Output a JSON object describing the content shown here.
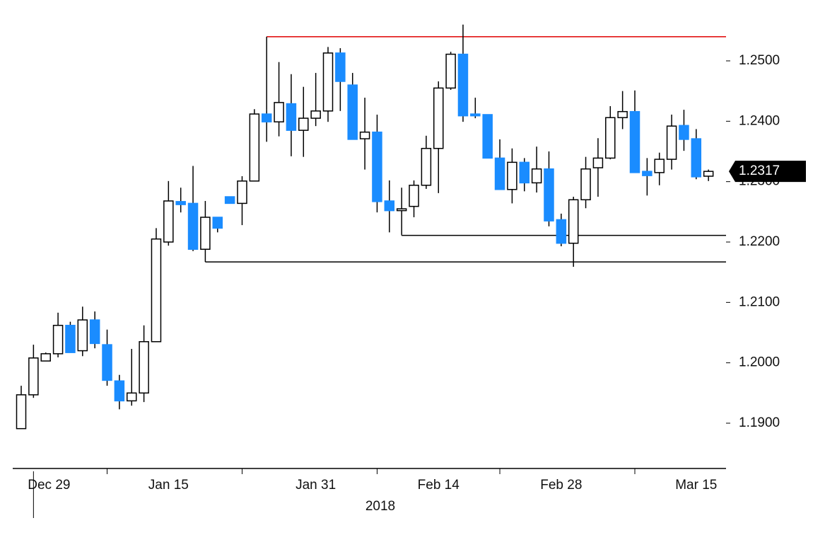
{
  "chart_data": {
    "type": "candlestick",
    "categories": [
      null,
      "Dec 29",
      null,
      null,
      null,
      null,
      null,
      null,
      null,
      null,
      null,
      null,
      "Jan 15",
      null,
      null,
      null,
      null,
      null,
      null,
      null,
      null,
      null,
      null,
      null,
      "Jan 31",
      null,
      null,
      null,
      null,
      null,
      null,
      null,
      null,
      null,
      "Feb 14",
      null,
      null,
      null,
      null,
      null,
      null,
      null,
      null,
      null,
      "Feb 28",
      null,
      null,
      null,
      null,
      null,
      null,
      null,
      null,
      null,
      null,
      "Mar 15",
      null
    ],
    "x_label": "2018",
    "open": [
      1.1891,
      1.1947,
      1.2003,
      1.2015,
      1.2062,
      1.202,
      1.2071,
      1.203,
      1.197,
      1.1937,
      1.195,
      1.2035,
      1.22,
      1.2267,
      1.2264,
      1.2188,
      1.2241,
      1.2275,
      1.2264,
      1.2301,
      1.2412,
      1.2399,
      1.2429,
      1.2385,
      1.2405,
      1.2417,
      1.2513,
      1.246,
      1.2371,
      1.2382,
      1.2268,
      1.2252,
      1.2259,
      1.2294,
      1.2355,
      1.2455,
      1.2511,
      1.2412,
      1.2411,
      1.2339,
      1.2287,
      1.2332,
      1.2298,
      1.2321,
      1.2237,
      1.2198,
      1.227,
      1.2323,
      1.2339,
      1.2406,
      1.2416,
      1.2317,
      1.2315,
      1.2337,
      1.2393,
      1.2371,
      1.2309
    ],
    "high": [
      1.1962,
      1.203,
      1.2017,
      1.2083,
      1.2068,
      1.2093,
      1.2085,
      1.2055,
      1.198,
      1.2023,
      1.2062,
      1.2223,
      1.2301,
      1.229,
      1.2326,
      1.2268,
      1.2241,
      1.2275,
      1.2309,
      1.242,
      1.2419,
      1.2498,
      1.2478,
      1.2457,
      1.248,
      1.2523,
      1.2521,
      1.248,
      1.2439,
      1.2411,
      1.2302,
      1.229,
      1.2302,
      1.2376,
      1.2466,
      1.2515,
      1.256,
      1.2439,
      1.2411,
      1.237,
      1.2355,
      1.2339,
      1.2358,
      1.235,
      1.2247,
      1.2275,
      1.2341,
      1.2372,
      1.2425,
      1.245,
      1.2451,
      1.2339,
      1.2348,
      1.2411,
      1.2419,
      1.2387,
      1.232
    ],
    "low": [
      1.1891,
      1.1942,
      1.2003,
      1.2009,
      1.2017,
      1.2011,
      1.2024,
      1.1962,
      1.1923,
      1.1929,
      1.1935,
      1.2035,
      1.2194,
      1.2249,
      1.2185,
      1.2167,
      1.2216,
      1.2264,
      1.2228,
      1.2301,
      1.2366,
      1.2375,
      1.2342,
      1.2341,
      1.2392,
      1.2399,
      1.2417,
      1.237,
      1.232,
      1.2249,
      1.2216,
      1.2212,
      1.2241,
      1.2288,
      1.2281,
      1.2452,
      1.2399,
      1.2405,
      1.2339,
      1.2287,
      1.2264,
      1.2284,
      1.2282,
      1.2226,
      1.2193,
      1.2159,
      1.2256,
      1.2275,
      1.2337,
      1.2387,
      1.2315,
      1.2277,
      1.2294,
      1.232,
      1.2351,
      1.2304,
      1.2301
    ],
    "close": [
      1.1947,
      1.2008,
      1.2015,
      1.2062,
      1.2017,
      1.2071,
      1.2032,
      1.1971,
      1.1937,
      1.195,
      1.2035,
      1.2205,
      1.2268,
      1.2262,
      1.2188,
      1.2241,
      1.2223,
      1.2264,
      1.2301,
      1.2412,
      1.2399,
      1.2431,
      1.2385,
      1.2405,
      1.2417,
      1.2513,
      1.2466,
      1.237,
      1.2382,
      1.2267,
      1.2252,
      1.2255,
      1.2294,
      1.2355,
      1.2455,
      1.2511,
      1.2409,
      1.2409,
      1.2339,
      1.2287,
      1.2332,
      1.2298,
      1.2321,
      1.2235,
      1.2198,
      1.227,
      1.2321,
      1.2339,
      1.2406,
      1.2416,
      1.2315,
      1.231,
      1.2337,
      1.2392,
      1.237,
      1.2308,
      1.2317
    ],
    "up_color": "#ffffff",
    "down_color": "#1a8cff",
    "ylim": [
      1.1825,
      1.2575
    ],
    "yticks": [
      {
        "value": 1.19,
        "label": "1.1900"
      },
      {
        "value": 1.2,
        "label": "1.2000"
      },
      {
        "value": 1.21,
        "label": "1.2100"
      },
      {
        "value": 1.22,
        "label": "1.2200"
      },
      {
        "value": 1.23,
        "label": "1.2300"
      },
      {
        "value": 1.24,
        "label": "1.2400"
      },
      {
        "value": 1.25,
        "label": "1.2500"
      }
    ],
    "last_price": 1.2317,
    "levels": [
      {
        "value": 1.254,
        "start": 20,
        "color": "#e00000"
      },
      {
        "value": 1.2211,
        "start": 31,
        "color": "#000000"
      },
      {
        "value": 1.2167,
        "start": 15,
        "color": "#000000"
      }
    ]
  }
}
